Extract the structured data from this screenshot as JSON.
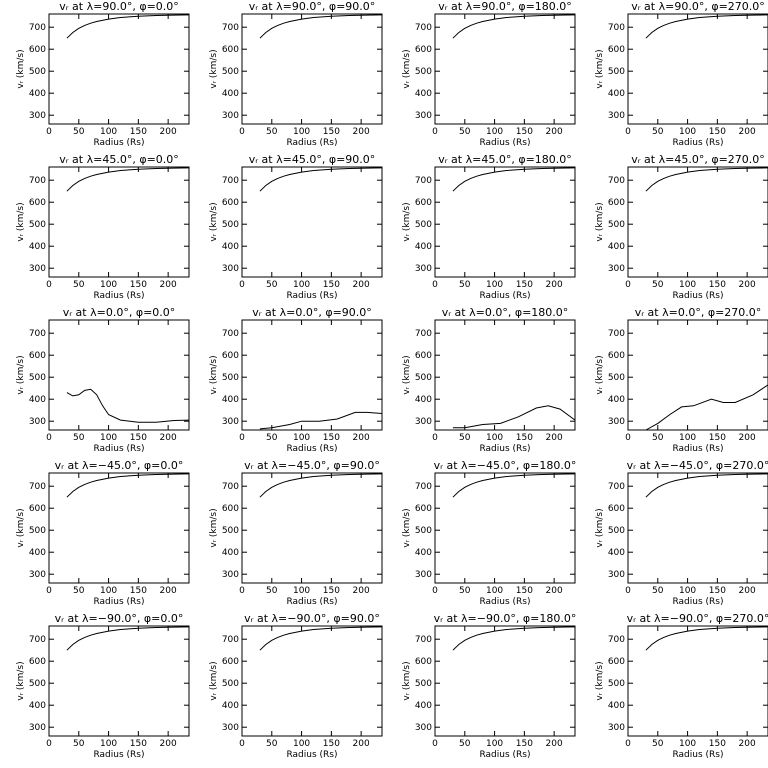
{
  "chart_data": [
    {
      "type": "line",
      "title": "vᵣ at λ=90.0°, φ=0.0°",
      "xlabel": "Radius (Rs)",
      "ylabel": "vᵣ (km/s)",
      "xlim": [
        0,
        235
      ],
      "ylim": [
        260,
        760
      ],
      "xticks": [
        0,
        50,
        100,
        150,
        200
      ],
      "yticks": [
        300,
        400,
        500,
        600,
        700
      ],
      "color": "#000000",
      "x": [
        30,
        40,
        50,
        60,
        70,
        80,
        100,
        120,
        150,
        180,
        210,
        235
      ],
      "values": [
        650,
        676,
        695,
        708,
        718,
        726,
        737,
        744,
        750,
        753,
        755,
        756
      ]
    },
    {
      "type": "line",
      "title": "vᵣ at λ=90.0°, φ=90.0°",
      "xlabel": "Radius (Rs)",
      "ylabel": "vᵣ (km/s)",
      "xlim": [
        0,
        235
      ],
      "ylim": [
        260,
        760
      ],
      "xticks": [
        0,
        50,
        100,
        150,
        200
      ],
      "yticks": [
        300,
        400,
        500,
        600,
        700
      ],
      "color": "#000000",
      "x": [
        30,
        40,
        50,
        60,
        70,
        80,
        100,
        120,
        150,
        180,
        210,
        235
      ],
      "values": [
        650,
        676,
        695,
        708,
        718,
        726,
        737,
        744,
        750,
        753,
        755,
        756
      ]
    },
    {
      "type": "line",
      "title": "vᵣ at λ=90.0°, φ=180.0°",
      "xlabel": "Radius (Rs)",
      "ylabel": "vᵣ (km/s)",
      "xlim": [
        0,
        235
      ],
      "ylim": [
        260,
        760
      ],
      "xticks": [
        0,
        50,
        100,
        150,
        200
      ],
      "yticks": [
        300,
        400,
        500,
        600,
        700
      ],
      "color": "#000000",
      "x": [
        30,
        40,
        50,
        60,
        70,
        80,
        100,
        120,
        150,
        180,
        210,
        235
      ],
      "values": [
        650,
        676,
        695,
        708,
        718,
        726,
        737,
        744,
        750,
        753,
        755,
        756
      ]
    },
    {
      "type": "line",
      "title": "vᵣ at λ=90.0°, φ=270.0°",
      "xlabel": "Radius (Rs)",
      "ylabel": "vᵣ (km/s)",
      "xlim": [
        0,
        235
      ],
      "ylim": [
        260,
        760
      ],
      "xticks": [
        0,
        50,
        100,
        150,
        200
      ],
      "yticks": [
        300,
        400,
        500,
        600,
        700
      ],
      "color": "#000000",
      "x": [
        30,
        40,
        50,
        60,
        70,
        80,
        100,
        120,
        150,
        180,
        210,
        235
      ],
      "values": [
        650,
        676,
        695,
        708,
        718,
        726,
        737,
        744,
        750,
        753,
        755,
        756
      ]
    },
    {
      "type": "line",
      "title": "vᵣ at λ=45.0°, φ=0.0°",
      "xlabel": "Radius (Rs)",
      "ylabel": "vᵣ (km/s)",
      "xlim": [
        0,
        235
      ],
      "ylim": [
        260,
        760
      ],
      "xticks": [
        0,
        50,
        100,
        150,
        200
      ],
      "yticks": [
        300,
        400,
        500,
        600,
        700
      ],
      "color": "#000000",
      "x": [
        30,
        40,
        50,
        60,
        70,
        80,
        100,
        120,
        150,
        180,
        210,
        235
      ],
      "values": [
        650,
        676,
        695,
        708,
        718,
        726,
        737,
        744,
        750,
        753,
        755,
        756
      ]
    },
    {
      "type": "line",
      "title": "vᵣ at λ=45.0°, φ=90.0°",
      "xlabel": "Radius (Rs)",
      "ylabel": "vᵣ (km/s)",
      "xlim": [
        0,
        235
      ],
      "ylim": [
        260,
        760
      ],
      "xticks": [
        0,
        50,
        100,
        150,
        200
      ],
      "yticks": [
        300,
        400,
        500,
        600,
        700
      ],
      "color": "#000000",
      "x": [
        30,
        40,
        50,
        60,
        70,
        80,
        100,
        120,
        150,
        180,
        210,
        235
      ],
      "values": [
        650,
        676,
        695,
        708,
        718,
        726,
        737,
        744,
        750,
        753,
        755,
        756
      ]
    },
    {
      "type": "line",
      "title": "vᵣ at λ=45.0°, φ=180.0°",
      "xlabel": "Radius (Rs)",
      "ylabel": "vᵣ (km/s)",
      "xlim": [
        0,
        235
      ],
      "ylim": [
        260,
        760
      ],
      "xticks": [
        0,
        50,
        100,
        150,
        200
      ],
      "yticks": [
        300,
        400,
        500,
        600,
        700
      ],
      "color": "#000000",
      "x": [
        30,
        40,
        50,
        60,
        70,
        80,
        100,
        120,
        150,
        180,
        210,
        235
      ],
      "values": [
        650,
        676,
        695,
        708,
        718,
        726,
        737,
        744,
        750,
        753,
        755,
        756
      ]
    },
    {
      "type": "line",
      "title": "vᵣ at λ=45.0°, φ=270.0°",
      "xlabel": "Radius (Rs)",
      "ylabel": "vᵣ (km/s)",
      "xlim": [
        0,
        235
      ],
      "ylim": [
        260,
        760
      ],
      "xticks": [
        0,
        50,
        100,
        150,
        200
      ],
      "yticks": [
        300,
        400,
        500,
        600,
        700
      ],
      "color": "#000000",
      "x": [
        30,
        40,
        50,
        60,
        70,
        80,
        100,
        120,
        150,
        180,
        210,
        235
      ],
      "values": [
        650,
        676,
        695,
        708,
        718,
        726,
        737,
        744,
        750,
        753,
        755,
        756
      ]
    },
    {
      "type": "line",
      "title": "vᵣ at λ=0.0°, φ=0.0°",
      "xlabel": "Radius (Rs)",
      "ylabel": "vᵣ (km/s)",
      "xlim": [
        0,
        235
      ],
      "ylim": [
        260,
        760
      ],
      "xticks": [
        0,
        50,
        100,
        150,
        200
      ],
      "yticks": [
        300,
        400,
        500,
        600,
        700
      ],
      "color": "#000000",
      "x": [
        30,
        40,
        50,
        60,
        70,
        80,
        90,
        100,
        120,
        150,
        180,
        210,
        235
      ],
      "values": [
        430,
        415,
        420,
        440,
        445,
        420,
        370,
        330,
        305,
        295,
        295,
        303,
        305
      ]
    },
    {
      "type": "line",
      "title": "vᵣ at λ=0.0°, φ=90.0°",
      "xlabel": "Radius (Rs)",
      "ylabel": "vᵣ (km/s)",
      "xlim": [
        0,
        235
      ],
      "ylim": [
        260,
        760
      ],
      "xticks": [
        0,
        50,
        100,
        150,
        200
      ],
      "yticks": [
        300,
        400,
        500,
        600,
        700
      ],
      "color": "#000000",
      "x": [
        30,
        50,
        80,
        100,
        130,
        160,
        190,
        210,
        235
      ],
      "values": [
        265,
        270,
        285,
        300,
        300,
        310,
        340,
        340,
        335
      ]
    },
    {
      "type": "line",
      "title": "vᵣ at λ=0.0°, φ=180.0°",
      "xlabel": "Radius (Rs)",
      "ylabel": "vᵣ (km/s)",
      "xlim": [
        0,
        235
      ],
      "ylim": [
        260,
        760
      ],
      "xticks": [
        0,
        50,
        100,
        150,
        200
      ],
      "yticks": [
        300,
        400,
        500,
        600,
        700
      ],
      "color": "#000000",
      "x": [
        30,
        50,
        80,
        110,
        140,
        170,
        190,
        210,
        235
      ],
      "values": [
        270,
        270,
        285,
        290,
        320,
        360,
        370,
        355,
        305
      ]
    },
    {
      "type": "line",
      "title": "vᵣ at λ=0.0°, φ=270.0°",
      "xlabel": "Radius (Rs)",
      "ylabel": "vᵣ (km/s)",
      "xlim": [
        0,
        235
      ],
      "ylim": [
        260,
        760
      ],
      "xticks": [
        0,
        50,
        100,
        150,
        200
      ],
      "yticks": [
        300,
        400,
        500,
        600,
        700
      ],
      "color": "#000000",
      "x": [
        30,
        50,
        70,
        90,
        110,
        140,
        160,
        180,
        210,
        235
      ],
      "values": [
        260,
        290,
        330,
        365,
        370,
        400,
        385,
        385,
        420,
        465
      ]
    },
    {
      "type": "line",
      "title": "vᵣ at λ=−45.0°, φ=0.0°",
      "xlabel": "Radius (Rs)",
      "ylabel": "vᵣ (km/s)",
      "xlim": [
        0,
        235
      ],
      "ylim": [
        260,
        760
      ],
      "xticks": [
        0,
        50,
        100,
        150,
        200
      ],
      "yticks": [
        300,
        400,
        500,
        600,
        700
      ],
      "color": "#000000",
      "x": [
        30,
        40,
        50,
        60,
        70,
        80,
        100,
        120,
        150,
        180,
        210,
        235
      ],
      "values": [
        650,
        676,
        695,
        708,
        718,
        726,
        737,
        744,
        750,
        753,
        755,
        756
      ]
    },
    {
      "type": "line",
      "title": "vᵣ at λ=−45.0°, φ=90.0°",
      "xlabel": "Radius (Rs)",
      "ylabel": "vᵣ (km/s)",
      "xlim": [
        0,
        235
      ],
      "ylim": [
        260,
        760
      ],
      "xticks": [
        0,
        50,
        100,
        150,
        200
      ],
      "yticks": [
        300,
        400,
        500,
        600,
        700
      ],
      "color": "#000000",
      "x": [
        30,
        40,
        50,
        60,
        70,
        80,
        100,
        120,
        150,
        180,
        210,
        235
      ],
      "values": [
        650,
        676,
        695,
        708,
        718,
        726,
        737,
        744,
        750,
        753,
        755,
        756
      ]
    },
    {
      "type": "line",
      "title": "vᵣ at λ=−45.0°, φ=180.0°",
      "xlabel": "Radius (Rs)",
      "ylabel": "vᵣ (km/s)",
      "xlim": [
        0,
        235
      ],
      "ylim": [
        260,
        760
      ],
      "xticks": [
        0,
        50,
        100,
        150,
        200
      ],
      "yticks": [
        300,
        400,
        500,
        600,
        700
      ],
      "color": "#000000",
      "x": [
        30,
        40,
        50,
        60,
        70,
        80,
        100,
        120,
        150,
        180,
        210,
        235
      ],
      "values": [
        650,
        676,
        695,
        708,
        718,
        726,
        737,
        744,
        750,
        753,
        755,
        756
      ]
    },
    {
      "type": "line",
      "title": "vᵣ at λ=−45.0°, φ=270.0°",
      "xlabel": "Radius (Rs)",
      "ylabel": "vᵣ (km/s)",
      "xlim": [
        0,
        235
      ],
      "ylim": [
        260,
        760
      ],
      "xticks": [
        0,
        50,
        100,
        150,
        200
      ],
      "yticks": [
        300,
        400,
        500,
        600,
        700
      ],
      "color": "#000000",
      "x": [
        30,
        40,
        50,
        60,
        70,
        80,
        100,
        120,
        150,
        180,
        210,
        235
      ],
      "values": [
        650,
        676,
        695,
        708,
        718,
        726,
        737,
        744,
        750,
        753,
        755,
        756
      ]
    },
    {
      "type": "line",
      "title": "vᵣ at λ=−90.0°, φ=0.0°",
      "xlabel": "Radius (Rs)",
      "ylabel": "vᵣ (km/s)",
      "xlim": [
        0,
        235
      ],
      "ylim": [
        260,
        760
      ],
      "xticks": [
        0,
        50,
        100,
        150,
        200
      ],
      "yticks": [
        300,
        400,
        500,
        600,
        700
      ],
      "color": "#000000",
      "x": [
        30,
        40,
        50,
        60,
        70,
        80,
        100,
        120,
        150,
        180,
        210,
        235
      ],
      "values": [
        650,
        676,
        695,
        708,
        718,
        726,
        737,
        744,
        750,
        753,
        755,
        756
      ]
    },
    {
      "type": "line",
      "title": "vᵣ at λ=−90.0°, φ=90.0°",
      "xlabel": "Radius (Rs)",
      "ylabel": "vᵣ (km/s)",
      "xlim": [
        0,
        235
      ],
      "ylim": [
        260,
        760
      ],
      "xticks": [
        0,
        50,
        100,
        150,
        200
      ],
      "yticks": [
        300,
        400,
        500,
        600,
        700
      ],
      "color": "#000000",
      "x": [
        30,
        40,
        50,
        60,
        70,
        80,
        100,
        120,
        150,
        180,
        210,
        235
      ],
      "values": [
        650,
        676,
        695,
        708,
        718,
        726,
        737,
        744,
        750,
        753,
        755,
        756
      ]
    },
    {
      "type": "line",
      "title": "vᵣ at λ=−90.0°, φ=180.0°",
      "xlabel": "Radius (Rs)",
      "ylabel": "vᵣ (km/s)",
      "xlim": [
        0,
        235
      ],
      "ylim": [
        260,
        760
      ],
      "xticks": [
        0,
        50,
        100,
        150,
        200
      ],
      "yticks": [
        300,
        400,
        500,
        600,
        700
      ],
      "color": "#000000",
      "x": [
        30,
        40,
        50,
        60,
        70,
        80,
        100,
        120,
        150,
        180,
        210,
        235
      ],
      "values": [
        650,
        676,
        695,
        708,
        718,
        726,
        737,
        744,
        750,
        753,
        755,
        756
      ]
    },
    {
      "type": "line",
      "title": "vᵣ at λ=−90.0°, φ=270.0°",
      "xlabel": "Radius (Rs)",
      "ylabel": "vᵣ (km/s)",
      "xlim": [
        0,
        235
      ],
      "ylim": [
        260,
        760
      ],
      "xticks": [
        0,
        50,
        100,
        150,
        200
      ],
      "yticks": [
        300,
        400,
        500,
        600,
        700
      ],
      "color": "#000000",
      "x": [
        30,
        40,
        50,
        60,
        70,
        80,
        100,
        120,
        150,
        180,
        210,
        235
      ],
      "values": [
        650,
        676,
        695,
        708,
        718,
        726,
        737,
        744,
        750,
        753,
        755,
        756
      ]
    }
  ]
}
